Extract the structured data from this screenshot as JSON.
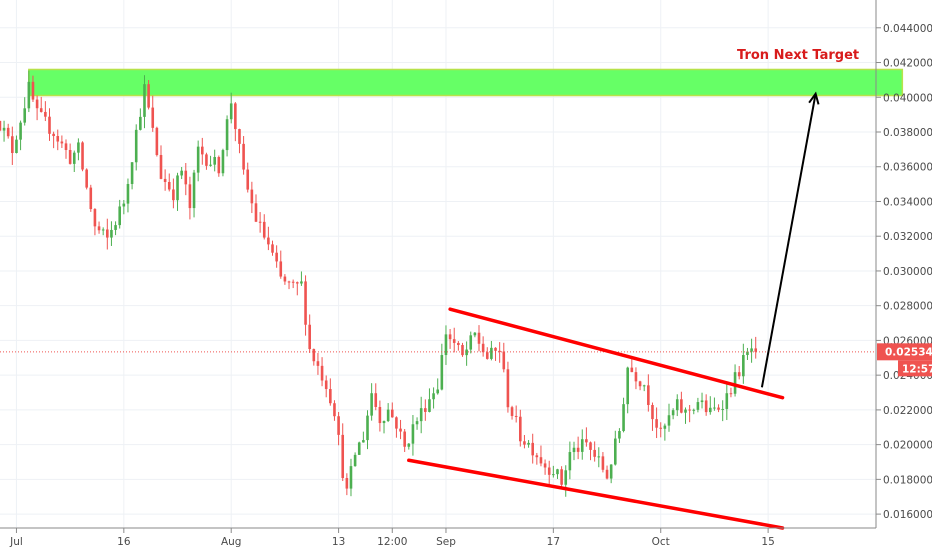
{
  "chart_data": {
    "type": "candlestick",
    "ylim": [
      0.0152,
      0.0456
    ],
    "y_ticks": [
      "0.044000",
      "0.042000",
      "0.040000",
      "0.038000",
      "0.036000",
      "0.034000",
      "0.032000",
      "0.030000",
      "0.028000",
      "0.026000",
      "0.024000",
      "0.022000",
      "0.020000",
      "0.018000",
      "0.016000"
    ],
    "y_tick_values": [
      0.044,
      0.042,
      0.04,
      0.038,
      0.036,
      0.034,
      0.032,
      0.03,
      0.028,
      0.026,
      0.024,
      0.022,
      0.02,
      0.018,
      0.016
    ],
    "x_ticks": [
      "Jul",
      "16",
      "Aug",
      "13",
      "12:00",
      "Sep",
      "17",
      "Oct",
      "15"
    ],
    "x_tick_bars": [
      5,
      31,
      57,
      83,
      96,
      109,
      135,
      161,
      187
    ],
    "bars_per_day": 2,
    "last_price": {
      "value": 0.025344,
      "label": "0.025344",
      "countdown": "12:57"
    },
    "colors": {
      "up": "#4caf50",
      "down": "#ef5350",
      "grid": "#eef1f5",
      "trendline": "#ff0000",
      "target_zone": "#66ff66",
      "target_zone_border": "#b7e24a",
      "arrow": "#000000",
      "price_label": "#ef5350"
    },
    "target_zone": {
      "y_low": 0.0401,
      "y_high": 0.0416,
      "x_start_bar": 8,
      "x_end_bar": 219.5
    },
    "trendlines": [
      {
        "name": "upper-channel",
        "from": {
          "bar": 110,
          "y": 0.0278
        },
        "to": {
          "bar": 190.5,
          "y": 0.0227
        }
      },
      {
        "name": "lower-channel",
        "from": {
          "bar": 100,
          "y": 0.0191
        },
        "to": {
          "bar": 190.5,
          "y": 0.0152
        }
      }
    ],
    "arrow": {
      "from": {
        "bar": 185.5,
        "y": 0.0233
      },
      "to": {
        "bar": 198.5,
        "y": 0.0402
      }
    },
    "annotation": {
      "text": "Tron Next Target",
      "color": "#d81b1b"
    },
    "series": [
      {
        "name": "",
        "waypoints": [
          [
            0,
            0.039
          ],
          [
            4,
            0.037
          ],
          [
            8,
            0.0405
          ],
          [
            10,
            0.039
          ],
          [
            14,
            0.038
          ],
          [
            18,
            0.0365
          ],
          [
            20,
            0.037
          ],
          [
            24,
            0.0325
          ],
          [
            27,
            0.0318
          ],
          [
            31,
            0.034
          ],
          [
            34,
            0.038
          ],
          [
            36,
            0.0405
          ],
          [
            38,
            0.038
          ],
          [
            40,
            0.0355
          ],
          [
            43,
            0.0345
          ],
          [
            45,
            0.0358
          ],
          [
            47,
            0.0336
          ],
          [
            49,
            0.037
          ],
          [
            51,
            0.0365
          ],
          [
            54,
            0.036
          ],
          [
            57,
            0.0398
          ],
          [
            60,
            0.0355
          ],
          [
            63,
            0.033
          ],
          [
            66,
            0.0315
          ],
          [
            69,
            0.0295
          ],
          [
            72,
            0.029
          ],
          [
            74,
            0.0292
          ],
          [
            76,
            0.0255
          ],
          [
            78,
            0.0245
          ],
          [
            80,
            0.0235
          ],
          [
            82,
            0.022
          ],
          [
            84,
            0.0185
          ],
          [
            85,
            0.0172
          ],
          [
            87,
            0.0195
          ],
          [
            89,
            0.0205
          ],
          [
            91,
            0.023
          ],
          [
            93,
            0.0215
          ],
          [
            95,
            0.022
          ],
          [
            97,
            0.0212
          ],
          [
            99,
            0.0198
          ],
          [
            101,
            0.021
          ],
          [
            104,
            0.0223
          ],
          [
            107,
            0.0235
          ],
          [
            109,
            0.0265
          ],
          [
            111,
            0.0258
          ],
          [
            113,
            0.025
          ],
          [
            116,
            0.0263
          ],
          [
            119,
            0.025
          ],
          [
            122,
            0.0255
          ],
          [
            124,
            0.0225
          ],
          [
            127,
            0.0205
          ],
          [
            130,
            0.0198
          ],
          [
            133,
            0.0188
          ],
          [
            135,
            0.0186
          ],
          [
            137,
            0.0178
          ],
          [
            139,
            0.0195
          ],
          [
            141,
            0.0198
          ],
          [
            143,
            0.02
          ],
          [
            146,
            0.019
          ],
          [
            148,
            0.0182
          ],
          [
            151,
            0.0208
          ],
          [
            153,
            0.0245
          ],
          [
            155,
            0.024
          ],
          [
            157,
            0.0235
          ],
          [
            159,
            0.0218
          ],
          [
            161,
            0.0205
          ],
          [
            163,
            0.0215
          ],
          [
            165,
            0.0222
          ],
          [
            167,
            0.0218
          ],
          [
            170,
            0.0225
          ],
          [
            173,
            0.0218
          ],
          [
            175,
            0.0222
          ],
          [
            177,
            0.0228
          ],
          [
            179,
            0.0238
          ],
          [
            181,
            0.0248
          ],
          [
            183,
            0.0255
          ],
          [
            184,
            0.025344
          ]
        ]
      }
    ]
  }
}
